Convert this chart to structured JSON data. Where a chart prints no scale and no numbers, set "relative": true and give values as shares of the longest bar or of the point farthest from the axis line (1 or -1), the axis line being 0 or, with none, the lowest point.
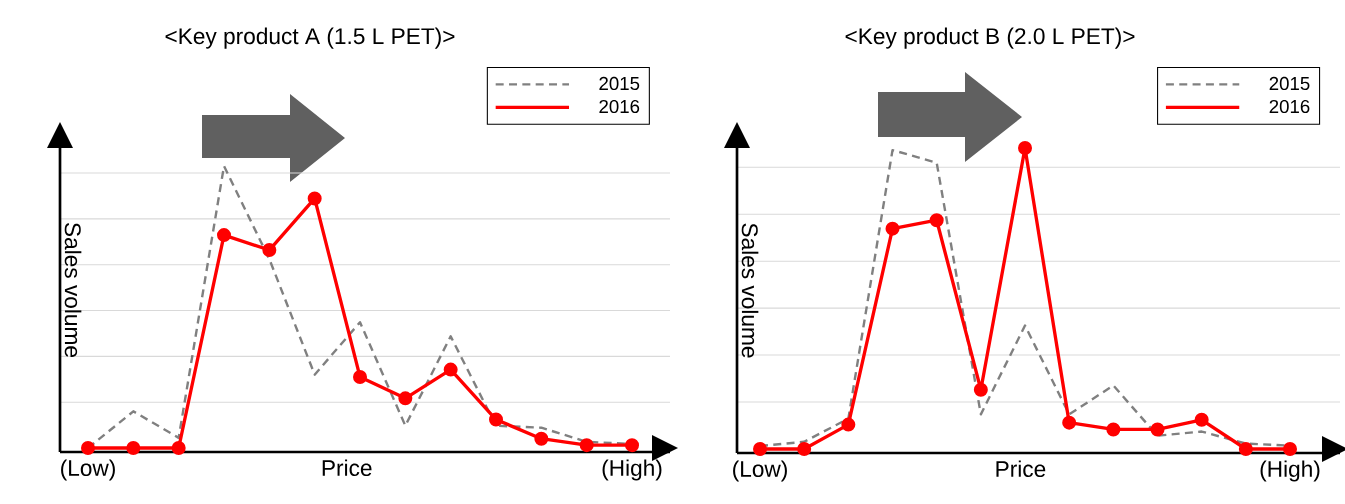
{
  "chart_data": [
    {
      "type": "line",
      "title": "<Key product A (1.5 L PET)>",
      "xlabel": "Price",
      "ylabel": "Sales volume",
      "relative": true,
      "grid": "y",
      "legend": "top right",
      "categories": [
        "(Low)",
        null,
        null,
        null,
        null,
        null,
        null,
        null,
        null,
        null,
        null,
        null,
        "(High)"
      ],
      "series": [
        {
          "name": "2015",
          "color": "#808080",
          "line_style": "dashed",
          "marker": "none",
          "values": [
            0,
            0.13,
            0.036,
            1,
            0.67,
            0.26,
            0.446,
            0.079,
            0.396,
            0.079,
            0.072,
            0.022,
            0.014
          ]
        },
        {
          "name": "2016",
          "color": "#ff0000",
          "line_style": "solid",
          "marker": "circle",
          "values": [
            0,
            0,
            0,
            0.755,
            0.702,
            0.885,
            0.252,
            0.176,
            0.278,
            0.101,
            0.033,
            0.01,
            0.01
          ]
        }
      ]
    },
    {
      "type": "line",
      "title": "<Key product B (2.0 L PET)>",
      "xlabel": "Price",
      "ylabel": "Sales volume",
      "relative": true,
      "grid": "y",
      "legend": "top right",
      "categories": [
        "(Low)",
        null,
        null,
        null,
        null,
        null,
        null,
        null,
        null,
        null,
        null,
        null,
        "(High)"
      ],
      "series": [
        {
          "name": "2015",
          "color": "#808080",
          "line_style": "dashed",
          "marker": "none",
          "values": [
            0.01,
            0.024,
            0.101,
            0.993,
            0.951,
            0.115,
            0.41,
            0.115,
            0.211,
            0.044,
            0.058,
            0.018,
            0.011
          ]
        },
        {
          "name": "2016",
          "color": "#ff0000",
          "line_style": "solid",
          "marker": "circle",
          "values": [
            0,
            0,
            0.081,
            0.732,
            0.76,
            0.197,
            1,
            0.0875,
            0.065,
            0.065,
            0.097,
            0,
            0
          ]
        }
      ]
    }
  ]
}
